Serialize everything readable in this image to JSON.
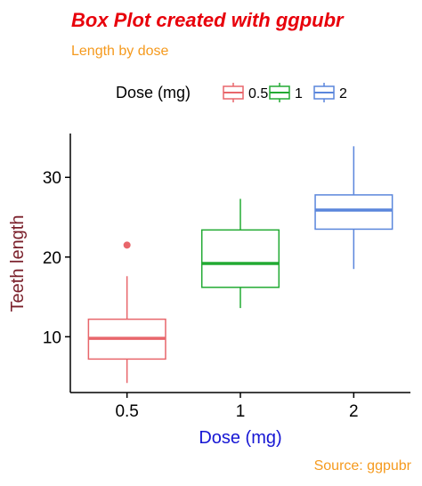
{
  "chart_data": {
    "type": "box",
    "title": "Box Plot created with ggpubr",
    "subtitle": "Length by dose",
    "caption": "Source: ggpubr",
    "xlabel": "Dose (mg)",
    "ylabel": "Teeth length",
    "legend": {
      "title": "Dose (mg)",
      "position": "top",
      "entries": [
        "0.5",
        "1",
        "2"
      ]
    },
    "categories": [
      "0.5",
      "1",
      "2"
    ],
    "ylim": [
      3.0,
      35.5
    ],
    "yticks": [
      10,
      20,
      30
    ],
    "grid": false,
    "series": [
      {
        "name": "0.5",
        "color": "#E8666B",
        "whisker_low": 4.2,
        "q1": 7.2,
        "median": 9.8,
        "q3": 12.2,
        "whisker_high": 17.6,
        "outliers": [
          21.5
        ]
      },
      {
        "name": "1",
        "color": "#22AA33",
        "whisker_low": 13.6,
        "q1": 16.2,
        "median": 19.2,
        "q3": 23.4,
        "whisker_high": 27.3,
        "outliers": []
      },
      {
        "name": "2",
        "color": "#5A86DC",
        "whisker_low": 18.5,
        "q1": 23.5,
        "median": 25.9,
        "q3": 27.8,
        "whisker_high": 33.9,
        "outliers": []
      }
    ],
    "colors": {
      "title": "#E8000B",
      "subtitle": "#F59A1E",
      "caption": "#F59A1E",
      "xlabel": "#1616D4",
      "ylabel": "#7A1F2A",
      "axis": "#000000"
    }
  }
}
